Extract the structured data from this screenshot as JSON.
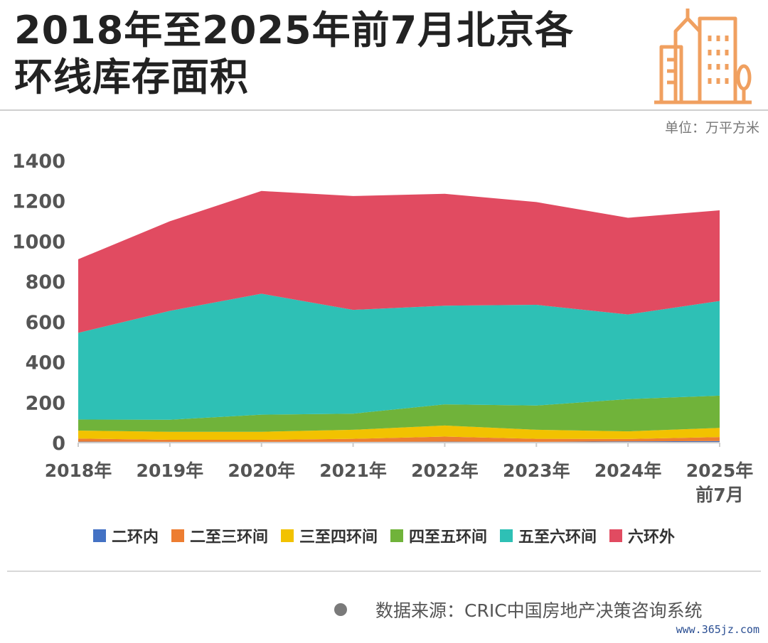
{
  "header": {
    "title_line1": "2018年至2025年前7月北京各",
    "title_line2": "环线库存面积",
    "unit": "单位：万平方米"
  },
  "colors": {
    "accent": "#f0a060",
    "series": [
      "#4472c4",
      "#ed7d31",
      "#f2c200",
      "#70b33a",
      "#2ec0b5",
      "#e14b61"
    ]
  },
  "footer": {
    "source": "数据来源：CRIC中国房地产决策咨询系统",
    "site": "www.365jz.com"
  },
  "chart_data": {
    "type": "area",
    "stacked": true,
    "title": "2018年至2025年前7月北京各环线库存面积",
    "ylabel": "单位：万平方米",
    "xlabel": "",
    "ylim": [
      0,
      1400
    ],
    "yticks": [
      0,
      200,
      400,
      600,
      800,
      1000,
      1200,
      1400
    ],
    "categories": [
      "2018年",
      "2019年",
      "2020年",
      "2021年",
      "2022年",
      "2023年",
      "2024年",
      "2025年前7月"
    ],
    "category_lines": [
      [
        "2018年"
      ],
      [
        "2019年"
      ],
      [
        "2020年"
      ],
      [
        "2021年"
      ],
      [
        "2022年"
      ],
      [
        "2023年"
      ],
      [
        "2024年"
      ],
      [
        "2025年",
        "前7月"
      ]
    ],
    "legend_position": "bottom",
    "series": [
      {
        "name": "二环内",
        "color": "#4472c4",
        "values": [
          5,
          4,
          4,
          4,
          5,
          4,
          6,
          8
        ]
      },
      {
        "name": "二至三环间",
        "color": "#ed7d31",
        "values": [
          15,
          10,
          10,
          15,
          25,
          15,
          12,
          20
        ]
      },
      {
        "name": "三至四环间",
        "color": "#f2c200",
        "values": [
          40,
          40,
          40,
          45,
          55,
          45,
          38,
          45
        ]
      },
      {
        "name": "四至五环间",
        "color": "#70b33a",
        "values": [
          55,
          60,
          85,
          80,
          105,
          120,
          160,
          160
        ]
      },
      {
        "name": "五至六环间",
        "color": "#2ec0b5",
        "values": [
          430,
          540,
          600,
          515,
          490,
          500,
          420,
          470
        ]
      },
      {
        "name": "六环外",
        "color": "#e14b61",
        "values": [
          365,
          445,
          510,
          565,
          555,
          510,
          480,
          450
        ]
      }
    ]
  }
}
